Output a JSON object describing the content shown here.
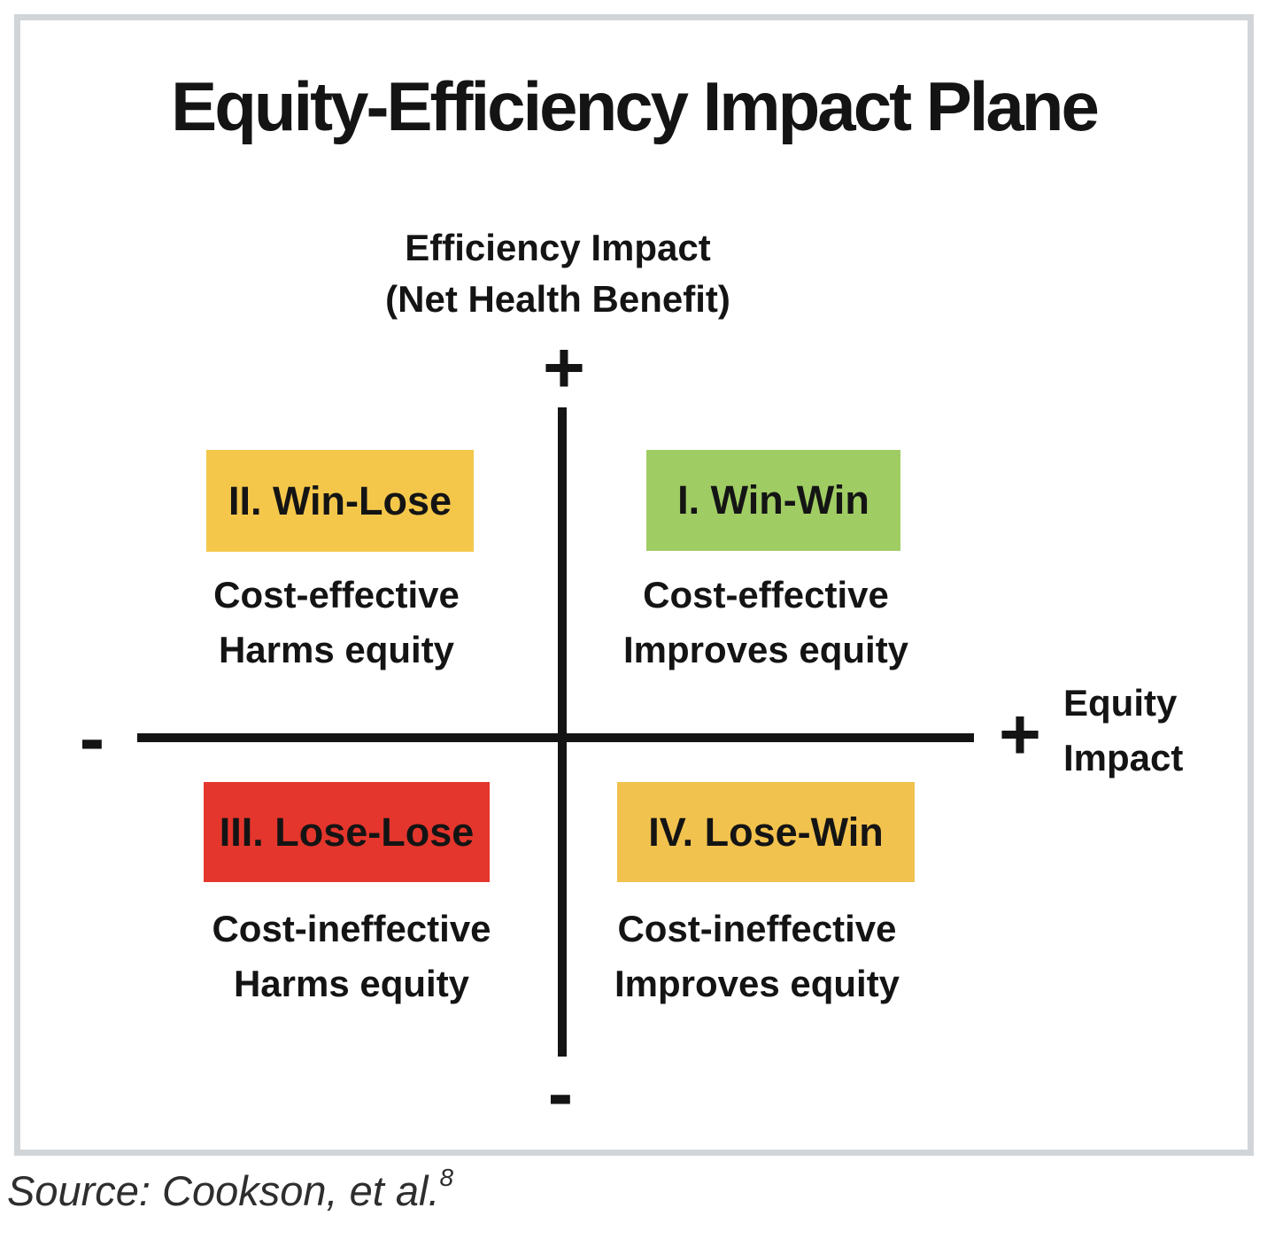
{
  "frame": {
    "border_color": "#d2d5d8",
    "background": "#ffffff"
  },
  "title": "Equity-Efficiency Impact Plane",
  "axes": {
    "color": "#141414",
    "y_axis": {
      "label_line1": "Efficiency Impact",
      "label_line2": "(Net Health Benefit)",
      "positive_sign": "+",
      "negative_sign": "-"
    },
    "x_axis": {
      "label_line1": "Equity",
      "label_line2": "Impact",
      "positive_sign": "+",
      "negative_sign": "-"
    }
  },
  "quadrants": {
    "win_win": {
      "label": "I. Win-Win",
      "desc_line1": "Cost-effective",
      "desc_line2": "Improves equity",
      "color": "#a0cc64"
    },
    "win_lose": {
      "label": "II. Win-Lose",
      "desc_line1": "Cost-effective",
      "desc_line2": "Harms equity",
      "color": "#f4c74b"
    },
    "lose_lose": {
      "label": "III. Lose-Lose",
      "desc_line1": "Cost-ineffective",
      "desc_line2": "Harms equity",
      "color": "#e4362c"
    },
    "lose_win": {
      "label": "IV. Lose-Win",
      "desc_line1": "Cost-ineffective",
      "desc_line2": "Improves equity",
      "color": "#f2c24e"
    }
  },
  "source": {
    "prefix": "Source: Cookson, et al.",
    "superscript": "8"
  }
}
